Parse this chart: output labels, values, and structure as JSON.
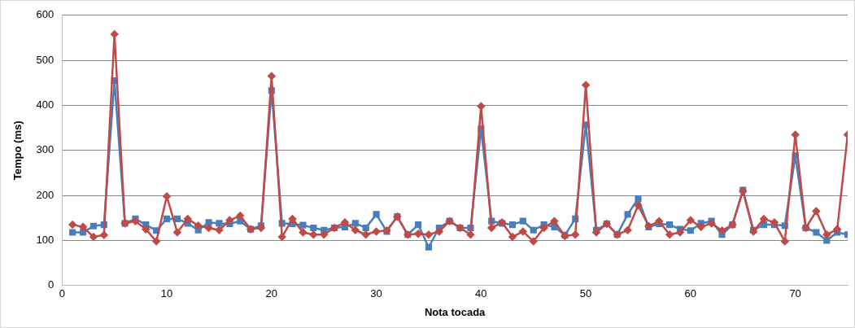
{
  "chart_data": {
    "type": "line",
    "xlabel": "Nota tocada",
    "ylabel": "Tempo (ms)",
    "x": [
      1,
      2,
      3,
      4,
      5,
      6,
      7,
      8,
      9,
      10,
      11,
      12,
      13,
      14,
      15,
      16,
      17,
      18,
      19,
      20,
      21,
      22,
      23,
      24,
      25,
      26,
      27,
      28,
      29,
      30,
      31,
      32,
      33,
      34,
      35,
      36,
      37,
      38,
      39,
      40,
      41,
      42,
      43,
      44,
      45,
      46,
      47,
      48,
      49,
      50,
      51,
      52,
      53,
      54,
      55,
      56,
      57,
      58,
      59,
      60,
      61,
      62,
      63,
      64,
      65,
      66,
      67,
      68,
      69,
      70,
      71,
      72,
      73,
      74,
      75
    ],
    "series": [
      {
        "color": "#be4b48",
        "marker": "diamond",
        "values": [
          135,
          130,
          108,
          112,
          558,
          138,
          143,
          125,
          98,
          198,
          118,
          148,
          133,
          128,
          123,
          145,
          155,
          125,
          128,
          465,
          108,
          148,
          118,
          113,
          113,
          128,
          140,
          123,
          113,
          120,
          122,
          153,
          113,
          115,
          113,
          120,
          143,
          128,
          113,
          398,
          128,
          140,
          108,
          120,
          98,
          128,
          143,
          110,
          113,
          445,
          118,
          137,
          113,
          123,
          178,
          132,
          143,
          113,
          118,
          145,
          130,
          138,
          122,
          135,
          210,
          120,
          148,
          140,
          98,
          335,
          128,
          165,
          113,
          125,
          335
        ]
      },
      {
        "color": "#4a7ebb",
        "marker": "square",
        "values": [
          118,
          118,
          132,
          135,
          455,
          138,
          148,
          135,
          122,
          148,
          148,
          138,
          123,
          140,
          138,
          137,
          143,
          125,
          133,
          433,
          138,
          137,
          134,
          128,
          123,
          128,
          130,
          138,
          128,
          158,
          120,
          153,
          113,
          135,
          85,
          128,
          143,
          128,
          128,
          348,
          143,
          138,
          135,
          143,
          123,
          135,
          130,
          112,
          148,
          357,
          123,
          137,
          113,
          158,
          193,
          130,
          137,
          135,
          125,
          122,
          138,
          143,
          113,
          135,
          212,
          123,
          135,
          135,
          133,
          288,
          128,
          118,
          100,
          118,
          113
        ]
      }
    ],
    "xlim": [
      0,
      75
    ],
    "xticks": [
      0,
      10,
      20,
      30,
      40,
      50,
      60,
      70
    ],
    "ylim": [
      0,
      600
    ],
    "yticks": [
      0,
      100,
      200,
      300,
      400,
      500,
      600
    ],
    "grid": "y",
    "legend": false
  }
}
